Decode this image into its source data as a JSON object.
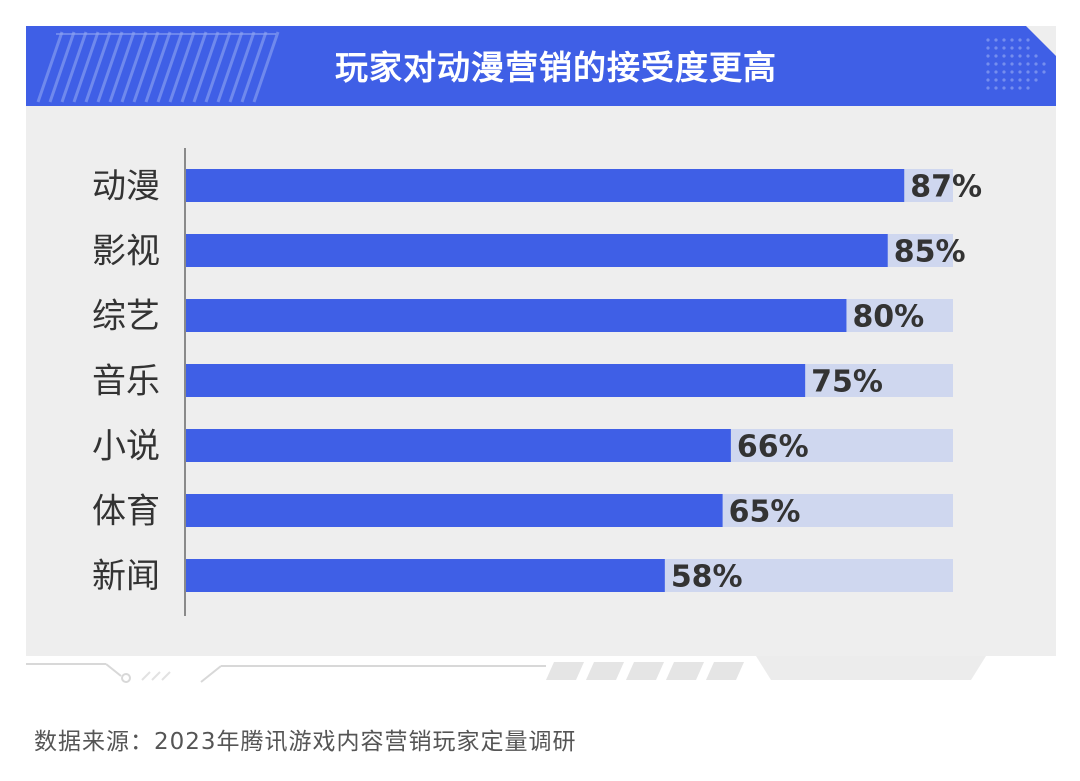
{
  "chart_data": {
    "type": "bar",
    "orientation": "horizontal",
    "title": "玩家对动漫营销的接受度更高",
    "categories": [
      "动漫",
      "影视",
      "综艺",
      "音乐",
      "小说",
      "体育",
      "新闻"
    ],
    "values": [
      87,
      85,
      80,
      75,
      66,
      65,
      58
    ],
    "value_labels": [
      "87%",
      "85%",
      "80%",
      "75%",
      "66%",
      "65%",
      "58%"
    ],
    "xlim": [
      0,
      90
    ],
    "unit": "%",
    "xlabel": "",
    "ylabel": "",
    "grid": false,
    "colors": {
      "bar": "#3f5fe6",
      "track": "#cfd7ef",
      "header": "#3f5fe6",
      "axis": "#888888",
      "label": "#333333"
    }
  },
  "source": "数据来源：2023年腾讯游戏内容营销玩家定量调研"
}
